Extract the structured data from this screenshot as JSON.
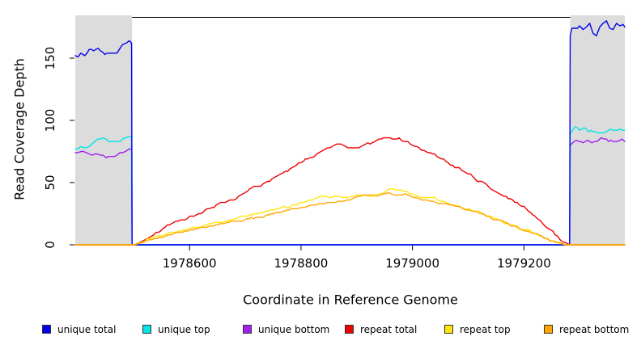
{
  "chart_data": {
    "type": "line",
    "title": "",
    "xlabel": "Coordinate in Reference Genome",
    "ylabel": "Read Coverage Depth",
    "xlim": [
      1978395,
      1979381
    ],
    "ylim": [
      0,
      184
    ],
    "xticks": [
      1978600,
      1978800,
      1979000,
      1979200
    ],
    "yticks": [
      0,
      50,
      100,
      150
    ],
    "grid": false,
    "legend_position": "bottom-horizontal",
    "shade_color": "#DCDCDC",
    "shaded_regions": [
      {
        "x0": 1978395,
        "x1": 1978497
      },
      {
        "x0": 1979283,
        "x1": 1979381
      }
    ],
    "legend": [
      {
        "label": "unique total",
        "color": "#0000F0"
      },
      {
        "label": "unique top",
        "color": "#00E6E6"
      },
      {
        "label": "unique bottom",
        "color": "#A020F0"
      },
      {
        "label": "repeat total",
        "color": "#EF0000"
      },
      {
        "label": "repeat top",
        "color": "#FFE60A"
      },
      {
        "label": "repeat bottom",
        "color": "#FFA500"
      }
    ],
    "series": [
      {
        "name": "unique bottom",
        "color": "#A020F0",
        "points": [
          [
            1978395,
            75
          ],
          [
            1978405,
            74
          ],
          [
            1978415,
            74
          ],
          [
            1978425,
            73
          ],
          [
            1978435,
            73
          ],
          [
            1978445,
            72
          ],
          [
            1978455,
            70
          ],
          [
            1978465,
            71
          ],
          [
            1978475,
            74
          ],
          [
            1978485,
            75
          ],
          [
            1978492,
            76
          ],
          [
            1978496,
            77
          ],
          [
            1978497,
            0
          ],
          [
            1979282,
            0
          ],
          [
            1979283,
            79
          ],
          [
            1979290,
            82
          ],
          [
            1979298,
            83
          ],
          [
            1979306,
            82
          ],
          [
            1979314,
            84
          ],
          [
            1979322,
            81
          ],
          [
            1979330,
            83
          ],
          [
            1979338,
            86
          ],
          [
            1979344,
            85
          ],
          [
            1979352,
            83
          ],
          [
            1979360,
            84
          ],
          [
            1979368,
            82
          ],
          [
            1979376,
            84
          ],
          [
            1979381,
            83
          ]
        ]
      },
      {
        "name": "unique top",
        "color": "#00E6E6",
        "points": [
          [
            1978395,
            77
          ],
          [
            1978405,
            79
          ],
          [
            1978415,
            78
          ],
          [
            1978425,
            80
          ],
          [
            1978435,
            84
          ],
          [
            1978445,
            85
          ],
          [
            1978455,
            84
          ],
          [
            1978465,
            85
          ],
          [
            1978475,
            84
          ],
          [
            1978485,
            86
          ],
          [
            1978492,
            87
          ],
          [
            1978496,
            87
          ],
          [
            1978497,
            0
          ],
          [
            1979282,
            0
          ],
          [
            1979283,
            89
          ],
          [
            1979287,
            93
          ],
          [
            1979292,
            95
          ],
          [
            1979300,
            92
          ],
          [
            1979308,
            93
          ],
          [
            1979316,
            91
          ],
          [
            1979324,
            92
          ],
          [
            1979332,
            90
          ],
          [
            1979340,
            90
          ],
          [
            1979348,
            91
          ],
          [
            1979356,
            92
          ],
          [
            1979364,
            91
          ],
          [
            1979372,
            93
          ],
          [
            1979381,
            92
          ]
        ]
      },
      {
        "name": "unique total",
        "color": "#0000F0",
        "points": [
          [
            1978395,
            151
          ],
          [
            1978405,
            153
          ],
          [
            1978412,
            152
          ],
          [
            1978420,
            156
          ],
          [
            1978428,
            154
          ],
          [
            1978436,
            156
          ],
          [
            1978444,
            153
          ],
          [
            1978452,
            152
          ],
          [
            1978458,
            153
          ],
          [
            1978466,
            152
          ],
          [
            1978474,
            155
          ],
          [
            1978480,
            159
          ],
          [
            1978486,
            160
          ],
          [
            1978492,
            163
          ],
          [
            1978496,
            162
          ],
          [
            1978497,
            0
          ],
          [
            1979282,
            0
          ],
          [
            1979283,
            167
          ],
          [
            1979286,
            172
          ],
          [
            1979292,
            174
          ],
          [
            1979300,
            176
          ],
          [
            1979306,
            173
          ],
          [
            1979312,
            175
          ],
          [
            1979318,
            177
          ],
          [
            1979324,
            171
          ],
          [
            1979330,
            169
          ],
          [
            1979336,
            174
          ],
          [
            1979342,
            176
          ],
          [
            1979348,
            178
          ],
          [
            1979354,
            174
          ],
          [
            1979360,
            172
          ],
          [
            1979366,
            176
          ],
          [
            1979372,
            174
          ],
          [
            1979378,
            176
          ],
          [
            1979381,
            175
          ]
        ]
      },
      {
        "name": "repeat total",
        "color": "#EF0000",
        "points": [
          [
            1978395,
            0
          ],
          [
            1978500,
            0
          ],
          [
            1978512,
            2
          ],
          [
            1978524,
            5
          ],
          [
            1978536,
            8
          ],
          [
            1978548,
            11
          ],
          [
            1978560,
            15
          ],
          [
            1978572,
            18
          ],
          [
            1978584,
            20
          ],
          [
            1978596,
            21
          ],
          [
            1978608,
            23
          ],
          [
            1978620,
            26
          ],
          [
            1978632,
            29
          ],
          [
            1978644,
            31
          ],
          [
            1978656,
            33
          ],
          [
            1978668,
            35
          ],
          [
            1978680,
            36
          ],
          [
            1978692,
            40
          ],
          [
            1978704,
            44
          ],
          [
            1978716,
            46
          ],
          [
            1978728,
            48
          ],
          [
            1978740,
            51
          ],
          [
            1978752,
            54
          ],
          [
            1978764,
            57
          ],
          [
            1978776,
            60
          ],
          [
            1978788,
            63
          ],
          [
            1978800,
            66
          ],
          [
            1978812,
            69
          ],
          [
            1978824,
            72
          ],
          [
            1978836,
            75
          ],
          [
            1978848,
            78
          ],
          [
            1978856,
            79
          ],
          [
            1978864,
            80
          ],
          [
            1978872,
            80
          ],
          [
            1978880,
            79
          ],
          [
            1978888,
            77
          ],
          [
            1978896,
            77
          ],
          [
            1978904,
            78
          ],
          [
            1978912,
            80
          ],
          [
            1978920,
            81
          ],
          [
            1978928,
            82
          ],
          [
            1978936,
            84
          ],
          [
            1978944,
            85
          ],
          [
            1978952,
            86
          ],
          [
            1978960,
            87
          ],
          [
            1978968,
            86
          ],
          [
            1978976,
            85
          ],
          [
            1978984,
            83
          ],
          [
            1978996,
            81
          ],
          [
            1979008,
            79
          ],
          [
            1979020,
            76
          ],
          [
            1979032,
            74
          ],
          [
            1979044,
            71
          ],
          [
            1979056,
            68
          ],
          [
            1979068,
            65
          ],
          [
            1979080,
            62
          ],
          [
            1979092,
            59
          ],
          [
            1979104,
            56
          ],
          [
            1979116,
            52
          ],
          [
            1979128,
            49
          ],
          [
            1979140,
            46
          ],
          [
            1979152,
            42
          ],
          [
            1979164,
            40
          ],
          [
            1979176,
            37
          ],
          [
            1979188,
            34
          ],
          [
            1979200,
            31
          ],
          [
            1979212,
            27
          ],
          [
            1979224,
            22
          ],
          [
            1979236,
            17
          ],
          [
            1979248,
            12
          ],
          [
            1979260,
            7
          ],
          [
            1979270,
            3
          ],
          [
            1979278,
            1
          ],
          [
            1979283,
            0
          ],
          [
            1979381,
            0
          ]
        ]
      },
      {
        "name": "repeat top",
        "color": "#FFE60A",
        "points": [
          [
            1978395,
            0
          ],
          [
            1978500,
            0
          ],
          [
            1978515,
            2
          ],
          [
            1978530,
            5
          ],
          [
            1978545,
            7
          ],
          [
            1978560,
            9
          ],
          [
            1978575,
            11
          ],
          [
            1978590,
            12
          ],
          [
            1978605,
            13
          ],
          [
            1978620,
            15
          ],
          [
            1978640,
            17
          ],
          [
            1978660,
            19
          ],
          [
            1978680,
            21
          ],
          [
            1978700,
            23
          ],
          [
            1978720,
            25
          ],
          [
            1978740,
            27
          ],
          [
            1978760,
            29
          ],
          [
            1978780,
            31
          ],
          [
            1978800,
            34
          ],
          [
            1978815,
            36
          ],
          [
            1978830,
            38
          ],
          [
            1978845,
            39
          ],
          [
            1978855,
            38
          ],
          [
            1978870,
            39
          ],
          [
            1978885,
            38
          ],
          [
            1978900,
            39
          ],
          [
            1978915,
            40
          ],
          [
            1978930,
            39
          ],
          [
            1978945,
            41
          ],
          [
            1978955,
            43
          ],
          [
            1978965,
            45
          ],
          [
            1978975,
            44
          ],
          [
            1978985,
            43
          ],
          [
            1979000,
            41
          ],
          [
            1979015,
            39
          ],
          [
            1979030,
            38
          ],
          [
            1979045,
            36
          ],
          [
            1979060,
            34
          ],
          [
            1979075,
            32
          ],
          [
            1979090,
            30
          ],
          [
            1979105,
            28
          ],
          [
            1979120,
            26
          ],
          [
            1979135,
            23
          ],
          [
            1979150,
            21
          ],
          [
            1979165,
            18
          ],
          [
            1979180,
            16
          ],
          [
            1979195,
            13
          ],
          [
            1979210,
            11
          ],
          [
            1979225,
            8
          ],
          [
            1979240,
            5
          ],
          [
            1979255,
            3
          ],
          [
            1979268,
            1
          ],
          [
            1979278,
            0
          ],
          [
            1979381,
            0
          ]
        ]
      },
      {
        "name": "repeat bottom",
        "color": "#FFA500",
        "points": [
          [
            1978395,
            0
          ],
          [
            1978502,
            0
          ],
          [
            1978517,
            2
          ],
          [
            1978532,
            4
          ],
          [
            1978547,
            6
          ],
          [
            1978562,
            8
          ],
          [
            1978577,
            10
          ],
          [
            1978592,
            11
          ],
          [
            1978607,
            12
          ],
          [
            1978627,
            14
          ],
          [
            1978647,
            16
          ],
          [
            1978667,
            18
          ],
          [
            1978687,
            19
          ],
          [
            1978707,
            21
          ],
          [
            1978727,
            23
          ],
          [
            1978747,
            25
          ],
          [
            1978767,
            27
          ],
          [
            1978787,
            29
          ],
          [
            1978807,
            30
          ],
          [
            1978822,
            32
          ],
          [
            1978837,
            33
          ],
          [
            1978852,
            34
          ],
          [
            1978867,
            35
          ],
          [
            1978882,
            36
          ],
          [
            1978897,
            38
          ],
          [
            1978912,
            40
          ],
          [
            1978927,
            40
          ],
          [
            1978942,
            40
          ],
          [
            1978957,
            41
          ],
          [
            1978972,
            40
          ],
          [
            1978987,
            40
          ],
          [
            1979002,
            39
          ],
          [
            1979017,
            37
          ],
          [
            1979032,
            36
          ],
          [
            1979047,
            34
          ],
          [
            1979062,
            33
          ],
          [
            1979077,
            31
          ],
          [
            1979092,
            29
          ],
          [
            1979107,
            27
          ],
          [
            1979122,
            25
          ],
          [
            1979137,
            22
          ],
          [
            1979152,
            20
          ],
          [
            1979167,
            17
          ],
          [
            1979182,
            15
          ],
          [
            1979197,
            12
          ],
          [
            1979212,
            10
          ],
          [
            1979227,
            7
          ],
          [
            1979242,
            4
          ],
          [
            1979257,
            2
          ],
          [
            1979267,
            1
          ],
          [
            1979274,
            0
          ],
          [
            1979381,
            0
          ]
        ]
      }
    ]
  }
}
